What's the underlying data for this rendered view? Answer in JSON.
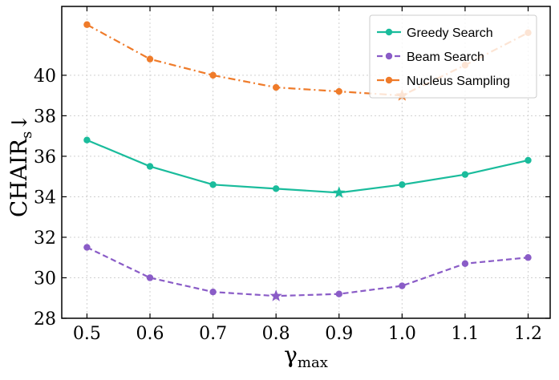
{
  "chart_data": {
    "type": "line",
    "title": "",
    "xlabel": "γ",
    "xlabel_sub": "max",
    "ylabel": "CHAIR",
    "ylabel_sub": "s",
    "ylabel_arrow": "↓",
    "x": [
      0.5,
      0.6,
      0.7,
      0.8,
      0.9,
      1.0,
      1.1,
      1.2
    ],
    "x_tick_labels": [
      "0.5",
      "0.6",
      "0.7",
      "0.8",
      "0.9",
      "1.0",
      "1.1",
      "1.2"
    ],
    "y_ticks": [
      28,
      30,
      32,
      34,
      36,
      38,
      40
    ],
    "xlim": [
      0.46,
      1.235
    ],
    "ylim": [
      28,
      43.4
    ],
    "grid": true,
    "legend_position": "top-right",
    "series": [
      {
        "name": "Greedy Search",
        "color": "#1abc9c",
        "line_style": "solid",
        "values": [
          36.8,
          35.5,
          34.6,
          34.4,
          34.2,
          34.6,
          35.1,
          35.8
        ],
        "best_index": 4
      },
      {
        "name": "Beam Search",
        "color": "#8a5cc7",
        "line_style": "dashed",
        "values": [
          31.5,
          30.0,
          29.3,
          29.1,
          29.2,
          29.6,
          30.7,
          31.0
        ],
        "best_index": 3
      },
      {
        "name": "Nucleus Sampling",
        "color": "#ef7b2a",
        "line_style": "dashdot",
        "values": [
          42.5,
          40.8,
          40.0,
          39.4,
          39.2,
          39.0,
          40.5,
          42.1
        ],
        "best_index": 5
      }
    ]
  }
}
